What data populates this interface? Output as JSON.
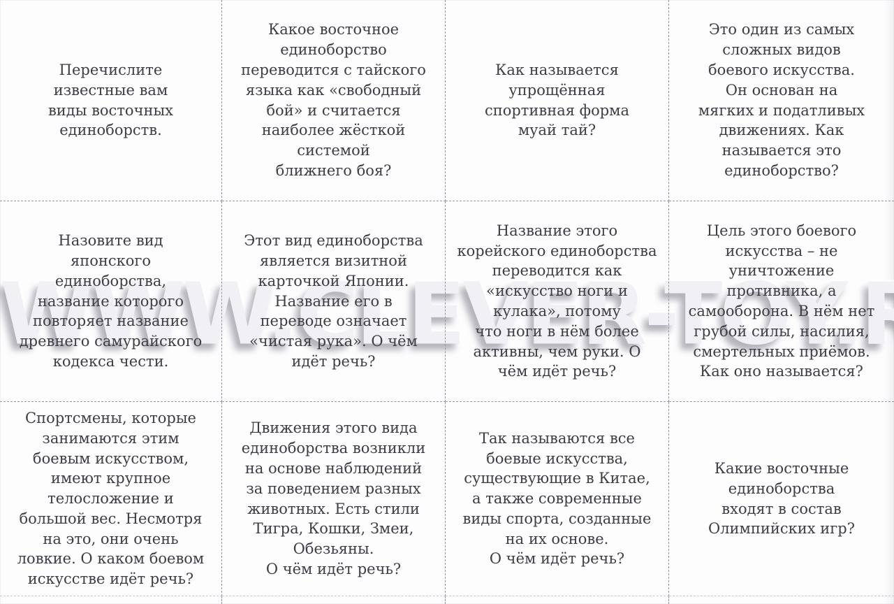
{
  "watermark": {
    "text": "WWW.CLEVER-TOY.RU"
  },
  "colors": {
    "paper": "#fdfdfe",
    "text": "#3d3d45",
    "cut_line": "#9296a6",
    "watermark_fill": "#f1f1f5"
  },
  "cards": [
    {
      "text": "Перечислите\nизвестные вам\nвиды восточных\nединоборств."
    },
    {
      "text": "Какое восточное\nединоборство\nпереводится с тайского\nязыка как «свободный\nбой» и считается\nнаиболее жёсткой\nсистемой\nближнего боя?"
    },
    {
      "text": "Как называется\nупрощённая\nспортивная форма\nмуай тай?"
    },
    {
      "text": "Это один из самых\nсложных видов\nбоевого искусства.\nОн основан на\nмягких и податливых\nдвижениях. Как\nназывается это\nединоборство?"
    },
    {
      "text": "Назовите вид\nяпонского\nединоборства,\nназвание которого\nповторяет название\nдревнего самурайского\nкодекса чести."
    },
    {
      "text": "Этот вид единоборства\nявляется визитной\nкарточкой Японии.\nНазвание его в\nпереводе означает\n«чистая рука». О чём\nидёт речь?"
    },
    {
      "text": "Название этого\nкорейского единоборства\nпереводится как\n«искусство ноги и\nкулака», потому\nчто ноги в нём более\nактивны, чем руки. О\nчём идёт речь?"
    },
    {
      "text": "Цель этого боевого\nискусства – не\nуничтожение\nпротивника, а\nсамооборона. В нём нет\nгрубой силы, насилия,\nсмертельных приёмов.\nКак оно называется?"
    },
    {
      "text": "Спортсмены, которые\nзанимаются этим\nбоевым искусством,\nимеют крупное\nтелосложение и\nбольшой вес. Несмотря\nна это, они очень\nловкие. О каком боевом\nискусстве идёт речь?"
    },
    {
      "text": "Движения этого вида\nединоборства возникли\nна основе наблюдений\nза поведением разных\nживотных. Есть стили\nТигра, Кошки, Змеи,\nОбезьяны.\nО чём идёт речь?"
    },
    {
      "text": "Так называются все\nбоевые искусства,\nсуществующие в Китае,\nа также современные\nвиды спорта, созданные\nна их основе.\nО чём идёт речь?"
    },
    {
      "text": "Какие восточные\nединоборства\nвходят в состав\nОлимпийских игр?"
    }
  ]
}
